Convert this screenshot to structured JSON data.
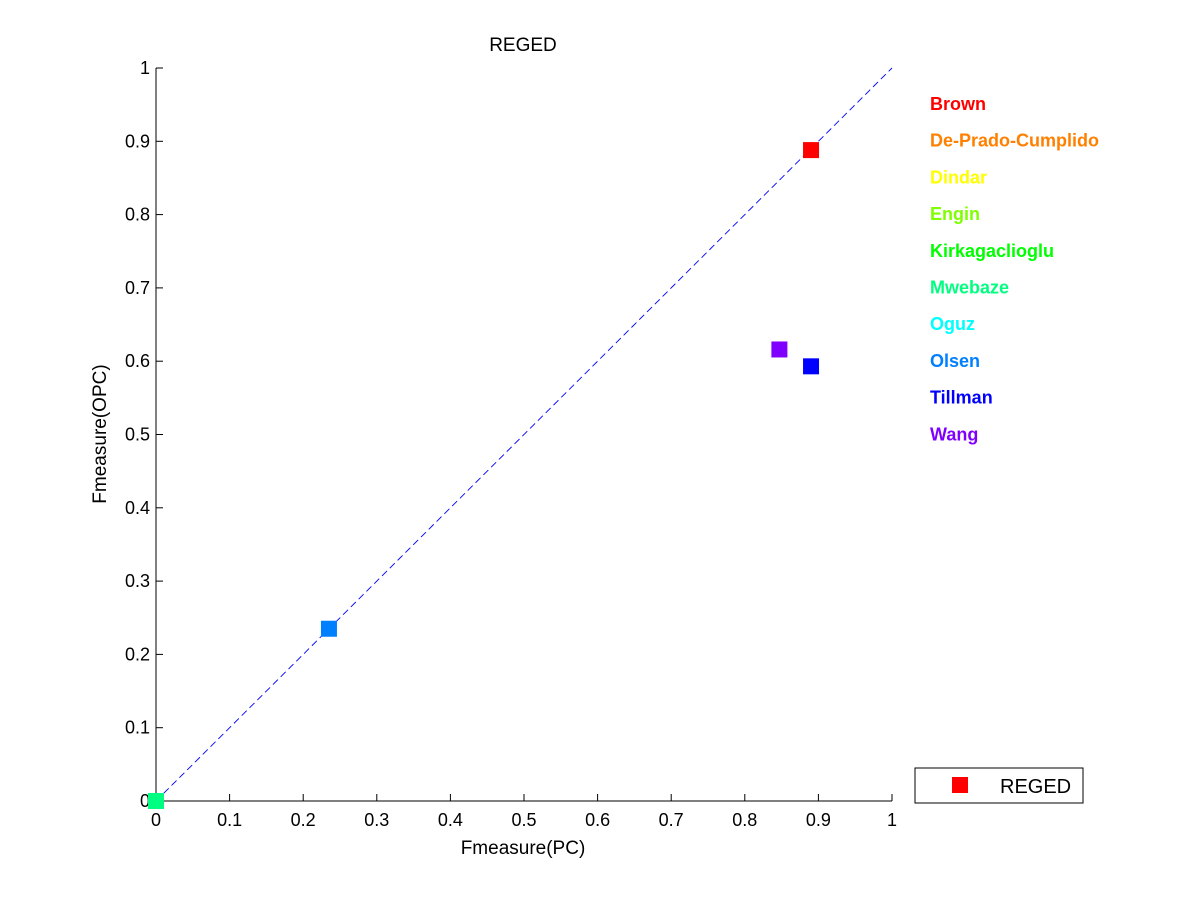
{
  "chart_data": {
    "type": "scatter",
    "title": "REGED",
    "xlabel": "Fmeasure(PC)",
    "ylabel": "Fmeasure(OPC)",
    "xlim": [
      0,
      1
    ],
    "ylim": [
      0,
      1
    ],
    "x_ticks": [
      "0",
      "0.1",
      "0.2",
      "0.3",
      "0.4",
      "0.5",
      "0.6",
      "0.7",
      "0.8",
      "0.9",
      "1"
    ],
    "y_ticks": [
      "0",
      "0.1",
      "0.2",
      "0.3",
      "0.4",
      "0.5",
      "0.6",
      "0.7",
      "0.8",
      "0.9",
      "1"
    ],
    "grid": false,
    "reference_line": {
      "style": "dashed",
      "color": "#0000ff",
      "from": [
        0,
        0
      ],
      "to": [
        1,
        1
      ]
    },
    "series": [
      {
        "name": "Brown",
        "color": "#ff0000",
        "x": 0.89,
        "y": 0.888
      },
      {
        "name": "De-Prado-Cumplido",
        "color": "#ff8000",
        "x": null,
        "y": null
      },
      {
        "name": "Dindar",
        "color": "#ffff00",
        "x": null,
        "y": null
      },
      {
        "name": "Engin",
        "color": "#80ff00",
        "x": null,
        "y": null
      },
      {
        "name": "Kirkagaclioglu",
        "color": "#00ff00",
        "x": null,
        "y": null
      },
      {
        "name": "Mwebaze",
        "color": "#00ff80",
        "x": 0.0,
        "y": 0.0
      },
      {
        "name": "Oguz",
        "color": "#00ffff",
        "x": null,
        "y": null
      },
      {
        "name": "Olsen",
        "color": "#0080ff",
        "x": 0.235,
        "y": 0.235
      },
      {
        "name": "Tillman",
        "color": "#0000ff",
        "x": 0.89,
        "y": 0.593
      },
      {
        "name": "Wang",
        "color": "#8000ff",
        "x": 0.847,
        "y": 0.616
      }
    ],
    "legend": {
      "position": "bottom-right",
      "entries": [
        {
          "label": "REGED",
          "color": "#ff0000",
          "marker": "square"
        }
      ]
    }
  }
}
